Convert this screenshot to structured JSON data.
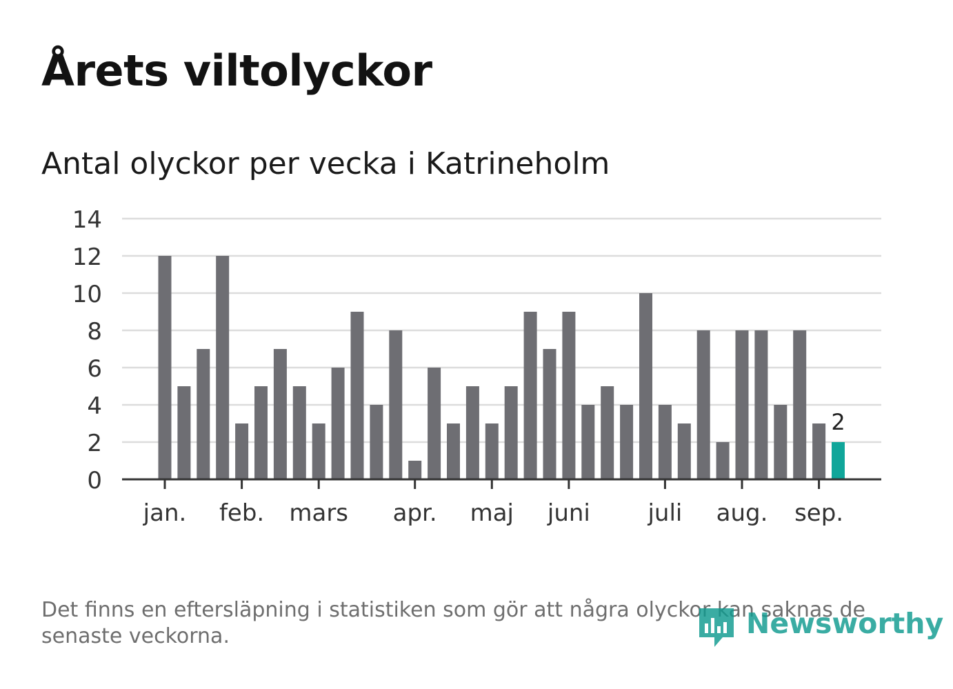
{
  "title": "Årets viltolyckor",
  "subtitle": "Antal olyckor per vecka i Katrineholm",
  "footnote": "Det finns en eftersläpning i statistiken som gör att några olyckor kan saknas de senaste veckorna.",
  "logo": {
    "text": "Newsworthy",
    "icon": "newsworthy-logo-icon",
    "color": "#109a8f"
  },
  "chart_data": {
    "type": "bar",
    "title": "Antal olyckor per vecka i Katrineholm",
    "ylim": [
      0,
      14
    ],
    "yticks": [
      "0",
      "2",
      "4",
      "6",
      "8",
      "10",
      "12",
      "14"
    ],
    "grid": true,
    "bar_color": "#6e6e73",
    "highlight_color": "#10a69a",
    "highlight_index": 35,
    "highlight_label": "2",
    "values": [
      12,
      5,
      7,
      12,
      3,
      5,
      7,
      5,
      3,
      6,
      9,
      4,
      8,
      1,
      6,
      3,
      5,
      3,
      5,
      9,
      7,
      9,
      4,
      5,
      4,
      10,
      4,
      3,
      8,
      2,
      8,
      8,
      4,
      8,
      3,
      2
    ],
    "month_labels": [
      {
        "label": "jan.",
        "week_index": 0
      },
      {
        "label": "feb.",
        "week_index": 4
      },
      {
        "label": "mars",
        "week_index": 8
      },
      {
        "label": "apr.",
        "week_index": 13
      },
      {
        "label": "maj",
        "week_index": 17
      },
      {
        "label": "juni",
        "week_index": 21
      },
      {
        "label": "juli",
        "week_index": 26
      },
      {
        "label": "aug.",
        "week_index": 30
      },
      {
        "label": "sep.",
        "week_index": 34
      }
    ]
  }
}
